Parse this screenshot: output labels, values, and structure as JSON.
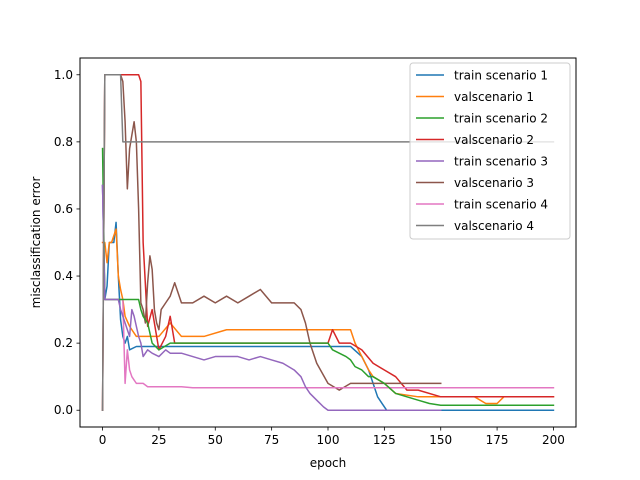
{
  "chart_data": {
    "type": "line",
    "title": "",
    "xlabel": "epoch",
    "ylabel": "misclassification error",
    "xlim": [
      -10,
      210
    ],
    "ylim": [
      -0.05,
      1.05
    ],
    "xticks": [
      0,
      25,
      50,
      75,
      100,
      125,
      150,
      175,
      200
    ],
    "yticks": [
      0.0,
      0.2,
      0.4,
      0.6,
      0.8,
      1.0
    ],
    "xtick_labels": [
      "0",
      "25",
      "50",
      "75",
      "100",
      "125",
      "150",
      "175",
      "200"
    ],
    "ytick_labels": [
      "0.0",
      "0.2",
      "0.4",
      "0.6",
      "0.8",
      "1.0"
    ],
    "grid": false,
    "legend_position": "upper-right",
    "series": [
      {
        "name": "train scenario 1",
        "color": "#1f77b4",
        "x": [
          0,
          1,
          2,
          3,
          4,
          5,
          6,
          7,
          8,
          9,
          10,
          11,
          12,
          15,
          18,
          20,
          25,
          30,
          35,
          40,
          50,
          60,
          70,
          80,
          90,
          100,
          110,
          115,
          118,
          120,
          122,
          124,
          126,
          130,
          140,
          150,
          200
        ],
        "y": [
          0.67,
          0.33,
          0.37,
          0.5,
          0.5,
          0.5,
          0.56,
          0.4,
          0.27,
          0.22,
          0.2,
          0.22,
          0.18,
          0.19,
          0.19,
          0.19,
          0.19,
          0.19,
          0.19,
          0.19,
          0.19,
          0.19,
          0.19,
          0.19,
          0.19,
          0.19,
          0.19,
          0.16,
          0.12,
          0.08,
          0.04,
          0.02,
          0.0,
          0.0,
          0.0,
          0.0,
          0.0
        ]
      },
      {
        "name": "valscenario 1",
        "color": "#ff7f0e",
        "x": [
          0,
          1,
          2,
          3,
          4,
          5,
          6,
          7,
          8,
          9,
          10,
          12,
          15,
          18,
          20,
          25,
          30,
          35,
          40,
          45,
          55,
          60,
          70,
          80,
          90,
          100,
          110,
          112,
          115,
          118,
          120,
          125,
          130,
          140,
          150,
          165,
          170,
          175,
          178,
          180,
          190,
          200
        ],
        "y": [
          0.5,
          0.5,
          0.44,
          0.5,
          0.5,
          0.52,
          0.54,
          0.4,
          0.36,
          0.33,
          0.28,
          0.25,
          0.22,
          0.22,
          0.22,
          0.22,
          0.26,
          0.22,
          0.22,
          0.22,
          0.24,
          0.24,
          0.24,
          0.24,
          0.24,
          0.24,
          0.24,
          0.2,
          0.16,
          0.12,
          0.1,
          0.08,
          0.05,
          0.04,
          0.04,
          0.04,
          0.02,
          0.02,
          0.04,
          0.04,
          0.04,
          0.04
        ]
      },
      {
        "name": "valscenario 2",
        "color": "#d62728",
        "x": [
          0,
          1,
          2,
          3,
          4,
          5,
          6,
          7,
          8,
          9,
          10,
          12,
          15,
          16,
          17,
          18,
          20,
          22,
          25,
          28,
          30,
          32,
          35,
          40,
          50,
          60,
          70,
          80,
          90,
          100,
          102,
          105,
          110,
          115,
          120,
          125,
          130,
          135,
          140,
          150,
          200
        ],
        "y": [
          0.0,
          1.0,
          1.0,
          1.0,
          1.0,
          1.0,
          1.0,
          1.0,
          1.0,
          1.0,
          1.0,
          1.0,
          1.0,
          1.0,
          0.98,
          0.5,
          0.25,
          0.3,
          0.18,
          0.22,
          0.28,
          0.2,
          0.2,
          0.2,
          0.2,
          0.2,
          0.2,
          0.2,
          0.2,
          0.2,
          0.24,
          0.2,
          0.2,
          0.18,
          0.14,
          0.12,
          0.1,
          0.06,
          0.06,
          0.04,
          0.04
        ]
      },
      {
        "name": "valscenario 3",
        "color": "#8c564b",
        "x": [
          0,
          1,
          2,
          3,
          4,
          5,
          6,
          7,
          8,
          9,
          10,
          11,
          12,
          13,
          14,
          15,
          16,
          17,
          18,
          19,
          20,
          21,
          22,
          23,
          24,
          25,
          26,
          28,
          30,
          32,
          35,
          40,
          45,
          50,
          55,
          60,
          65,
          70,
          75,
          80,
          85,
          88,
          90,
          92,
          95,
          100,
          105,
          110,
          115,
          120,
          125,
          130,
          135,
          140,
          150
        ],
        "y": [
          0.0,
          1.0,
          1.0,
          1.0,
          1.0,
          1.0,
          1.0,
          1.0,
          1.0,
          0.98,
          0.86,
          0.66,
          0.78,
          0.82,
          0.86,
          0.8,
          0.6,
          0.32,
          0.3,
          0.26,
          0.38,
          0.46,
          0.42,
          0.3,
          0.26,
          0.24,
          0.3,
          0.32,
          0.34,
          0.38,
          0.32,
          0.32,
          0.34,
          0.32,
          0.34,
          0.32,
          0.34,
          0.36,
          0.32,
          0.32,
          0.32,
          0.3,
          0.26,
          0.2,
          0.14,
          0.08,
          0.06,
          0.08,
          0.08,
          0.08,
          0.08,
          0.08,
          0.08,
          0.08,
          0.08
        ]
      },
      {
        "name": "train scenario 4",
        "color": "#e377c2",
        "x": [
          0,
          1,
          2,
          3,
          5,
          7,
          8,
          9,
          10,
          11,
          12,
          13,
          14,
          15,
          16,
          18,
          20,
          25,
          30,
          35,
          40,
          50,
          60,
          80,
          100,
          120,
          150,
          200
        ],
        "y": [
          0.67,
          0.33,
          0.33,
          0.33,
          0.33,
          0.33,
          0.33,
          0.33,
          0.08,
          0.18,
          0.12,
          0.1,
          0.09,
          0.08,
          0.08,
          0.08,
          0.07,
          0.07,
          0.07,
          0.07,
          0.067,
          0.067,
          0.067,
          0.067,
          0.067,
          0.067,
          0.067,
          0.067
        ]
      },
      {
        "name": "train scenario 2",
        "color": "#2ca02c",
        "x": [
          0,
          1,
          2,
          3,
          4,
          5,
          6,
          7,
          8,
          9,
          10,
          12,
          15,
          16,
          17,
          18,
          20,
          22,
          25,
          30,
          35,
          40,
          50,
          60,
          70,
          80,
          90,
          100,
          102,
          105,
          108,
          110,
          112,
          115,
          118,
          120,
          125,
          130,
          135,
          140,
          145,
          150,
          200
        ],
        "y": [
          0.78,
          0.33,
          0.33,
          0.33,
          0.33,
          0.33,
          0.33,
          0.33,
          0.33,
          0.33,
          0.33,
          0.33,
          0.33,
          0.33,
          0.3,
          0.28,
          0.26,
          0.2,
          0.18,
          0.2,
          0.2,
          0.2,
          0.2,
          0.2,
          0.2,
          0.2,
          0.2,
          0.2,
          0.18,
          0.17,
          0.16,
          0.15,
          0.13,
          0.12,
          0.1,
          0.1,
          0.08,
          0.05,
          0.04,
          0.03,
          0.02,
          0.015,
          0.015
        ]
      },
      {
        "name": "train scenario 3",
        "color": "#9467bd",
        "x": [
          0,
          1,
          2,
          3,
          5,
          7,
          8,
          9,
          10,
          12,
          13,
          14,
          15,
          16,
          17,
          18,
          20,
          22,
          25,
          28,
          30,
          35,
          40,
          45,
          50,
          55,
          60,
          65,
          70,
          75,
          80,
          85,
          88,
          90,
          92,
          95,
          98,
          100,
          105,
          110,
          115,
          120,
          125,
          130,
          135,
          140,
          145,
          150
        ],
        "y": [
          0.67,
          0.33,
          0.33,
          0.33,
          0.33,
          0.33,
          0.3,
          0.28,
          0.26,
          0.22,
          0.3,
          0.28,
          0.25,
          0.22,
          0.2,
          0.16,
          0.18,
          0.17,
          0.16,
          0.18,
          0.17,
          0.17,
          0.16,
          0.15,
          0.16,
          0.16,
          0.16,
          0.15,
          0.16,
          0.15,
          0.14,
          0.12,
          0.1,
          0.07,
          0.05,
          0.03,
          0.01,
          0.0,
          0.0,
          0.0,
          0.0,
          0.0,
          0.0,
          0.0,
          0.0,
          0.0,
          0.0,
          0.0
        ]
      },
      {
        "name": "valscenario 4",
        "color": "#7f7f7f",
        "x": [
          0,
          1,
          2,
          3,
          4,
          5,
          6,
          7,
          8,
          9,
          10,
          12,
          15,
          20,
          30,
          50,
          100,
          150,
          200
        ],
        "y": [
          0.0,
          1.0,
          1.0,
          1.0,
          1.0,
          1.0,
          1.0,
          1.0,
          1.0,
          0.8,
          0.8,
          0.8,
          0.8,
          0.8,
          0.8,
          0.8,
          0.8,
          0.8,
          0.8
        ]
      }
    ],
    "legend_order": [
      "train scenario 1",
      "valscenario 1",
      "train scenario 2",
      "valscenario 2",
      "train scenario 3",
      "valscenario 3",
      "train scenario 4",
      "valscenario 4"
    ]
  }
}
